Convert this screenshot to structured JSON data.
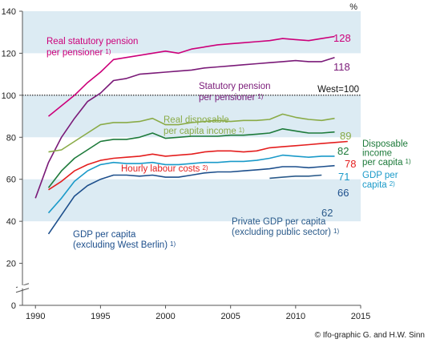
{
  "chart_data": {
    "type": "line",
    "unit": "%",
    "xlim": [
      1989,
      2015
    ],
    "ylim": [
      0,
      140
    ],
    "x_ticks": [
      1990,
      1995,
      2000,
      2005,
      2010,
      2015
    ],
    "y_ticks": [
      0,
      20,
      40,
      60,
      80,
      100,
      120,
      140
    ],
    "reference_line": {
      "value": 100,
      "label": "West=100"
    },
    "shaded_bands": [
      [
        40,
        60
      ],
      [
        80,
        100
      ],
      [
        120,
        140
      ]
    ],
    "copyright": "© Ifo-graphic  G. and H.W. Sinn",
    "series": [
      {
        "name": "Real statutory pension per pensioner",
        "label_lines": [
          "Real statutory pension",
          "per pensioner"
        ],
        "footnote": "1)",
        "color": "#cc007a",
        "end_label": "128",
        "x": [
          1991,
          1992,
          1993,
          1994,
          1995,
          1996,
          1997,
          1998,
          1999,
          2000,
          2001,
          2002,
          2003,
          2004,
          2005,
          2006,
          2007,
          2008,
          2009,
          2010,
          2011,
          2012,
          2013
        ],
        "y": [
          90,
          95,
          100,
          106,
          111,
          117,
          118,
          119,
          120,
          121,
          120,
          122,
          123,
          124,
          124.5,
          125,
          125.5,
          126,
          127,
          126.5,
          126,
          127,
          128
        ]
      },
      {
        "name": "Statutory pension per pensioner",
        "label_lines": [
          "Statutory pension",
          "per pensioner"
        ],
        "footnote": "1)",
        "color": "#7a1a78",
        "end_label": "118",
        "x": [
          1990,
          1991,
          1992,
          1993,
          1994,
          1995,
          1996,
          1997,
          1998,
          1999,
          2000,
          2001,
          2002,
          2003,
          2004,
          2005,
          2006,
          2007,
          2008,
          2009,
          2010,
          2011,
          2012,
          2013
        ],
        "y": [
          51,
          68,
          80,
          89,
          97,
          101,
          107,
          108,
          110,
          110.5,
          111,
          111.5,
          112,
          113,
          113.5,
          114,
          114.5,
          115,
          115.5,
          116,
          116.5,
          116,
          116,
          118
        ]
      },
      {
        "name": "Real disposable per capita income",
        "label_lines": [
          "Real disposable",
          "per capita income"
        ],
        "footnote": "1)",
        "color": "#8aab47",
        "end_label": "89",
        "x": [
          1991,
          1992,
          1993,
          1994,
          1995,
          1996,
          1997,
          1998,
          1999,
          2000,
          2001,
          2002,
          2003,
          2004,
          2005,
          2006,
          2007,
          2008,
          2009,
          2010,
          2011,
          2012,
          2013
        ],
        "y": [
          73,
          74,
          78,
          82,
          86,
          87,
          87,
          87.5,
          89,
          86,
          86,
          87,
          87.5,
          88,
          87.5,
          88,
          88,
          88.5,
          91,
          89.5,
          88.5,
          88,
          89
        ]
      },
      {
        "name": "Disposable income per capita",
        "label_lines": [
          "Disposable",
          "income",
          "per capita"
        ],
        "footnote": "1)",
        "color": "#1d7a3a",
        "end_label": "82",
        "x": [
          1991,
          1992,
          1993,
          1994,
          1995,
          1996,
          1997,
          1998,
          1999,
          2000,
          2001,
          2002,
          2003,
          2004,
          2005,
          2006,
          2007,
          2008,
          2009,
          2010,
          2011,
          2012,
          2013
        ],
        "y": [
          56,
          64,
          70,
          74,
          78,
          79,
          79,
          80,
          82,
          79.5,
          80,
          80.5,
          80.5,
          80.5,
          81,
          81,
          81.5,
          82,
          84,
          83,
          82,
          82,
          82.5
        ]
      },
      {
        "name": "Hourly labour costs",
        "label_lines": [
          "Hourly labour costs"
        ],
        "footnote": "2)",
        "color": "#e41e1e",
        "end_label": "78",
        "x": [
          1991,
          1992,
          1993,
          1994,
          1995,
          1996,
          1997,
          1998,
          1999,
          2000,
          2001,
          2002,
          2003,
          2004,
          2005,
          2006,
          2007,
          2008,
          2009,
          2010,
          2011,
          2012,
          2013,
          2014
        ],
        "y": [
          55,
          59,
          64,
          67,
          69,
          70,
          70.5,
          71,
          72,
          71,
          71.5,
          72,
          73,
          73.5,
          73.5,
          73,
          73.5,
          75,
          75.5,
          76,
          76.5,
          77,
          77.5,
          78
        ]
      },
      {
        "name": "GDP per capita",
        "label_lines": [
          "GDP per",
          "capita"
        ],
        "footnote": "2)",
        "color": "#1a9ac9",
        "end_label": "71",
        "x": [
          1991,
          1992,
          1993,
          1994,
          1995,
          1996,
          1997,
          1998,
          1999,
          2000,
          2001,
          2002,
          2003,
          2004,
          2005,
          2006,
          2007,
          2008,
          2009,
          2010,
          2011,
          2012,
          2013
        ],
        "y": [
          44,
          51,
          59,
          64,
          67,
          68,
          67.5,
          67.5,
          68,
          67,
          67,
          67.5,
          68,
          68,
          68.5,
          68.5,
          69,
          70,
          71.5,
          71,
          70.5,
          71,
          71
        ]
      },
      {
        "name": "GDP per capita (excluding West Berlin)",
        "label_lines": [
          "GDP per capita",
          "(excluding West Berlin)"
        ],
        "footnote": "1)",
        "color": "#1d4f8c",
        "end_label": "66",
        "x": [
          1991,
          1992,
          1993,
          1994,
          1995,
          1996,
          1997,
          1998,
          1999,
          2000,
          2001,
          2002,
          2003,
          2004,
          2005,
          2006,
          2007,
          2008,
          2009,
          2010,
          2011,
          2012,
          2013
        ],
        "y": [
          34,
          43,
          52,
          57,
          60,
          62,
          62,
          61.5,
          62,
          61,
          61,
          62,
          63,
          63.5,
          63.5,
          64,
          64.5,
          65,
          66,
          66,
          65.5,
          66,
          66.5
        ]
      },
      {
        "name": "Private GDP per capita (excluding public sector)",
        "label_lines": [
          "Private GDP per capita",
          "(excluding public sector)"
        ],
        "footnote": "1)",
        "color": "#2a5a8a",
        "end_label": "62",
        "x": [
          2008,
          2009,
          2010,
          2011,
          2012
        ],
        "y": [
          60.5,
          61,
          61.5,
          61.5,
          62
        ]
      }
    ]
  }
}
